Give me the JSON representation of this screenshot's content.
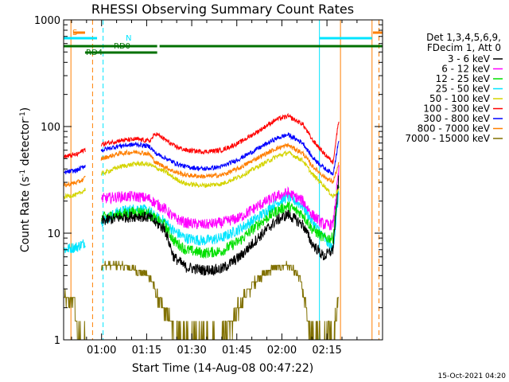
{
  "chart_data": {
    "type": "line",
    "title": "RHESSI Observing Summary Count Rates",
    "xlabel": "Start Time (14-Aug-08 00:47:22)",
    "ylabel": "Count Rate (s⁻¹ detector⁻¹)",
    "ylabel_parts": [
      "Count Rate (s",
      "-1",
      " detector",
      "-1",
      ")"
    ],
    "xlim_minutes": [
      47.37,
      153.5
    ],
    "ylim": [
      1,
      1000
    ],
    "yscale": "log",
    "x_ticks": [
      {
        "min": 60,
        "label": "01:00"
      },
      {
        "min": 75,
        "label": "01:15"
      },
      {
        "min": 90,
        "label": "01:30"
      },
      {
        "min": 105,
        "label": "01:45"
      },
      {
        "min": 120,
        "label": "02:00"
      },
      {
        "min": 135,
        "label": "02:15"
      }
    ],
    "y_ticks": [
      {
        "value": 1,
        "label": "1"
      },
      {
        "value": 10,
        "label": "10"
      },
      {
        "value": 100,
        "label": "100"
      },
      {
        "value": 1000,
        "label": "1000"
      }
    ],
    "legend": {
      "position": "right",
      "header": [
        "Det 1,3,4,5,6,9,",
        "FDecim 1, Att 0"
      ]
    },
    "series": [
      {
        "name": "3 - 6 keV",
        "color": "#000000",
        "x": [
          60,
          66,
          72,
          76,
          78,
          81,
          84,
          88,
          94,
          100,
          106,
          112,
          118,
          122,
          127,
          130,
          134,
          137,
          139
        ],
        "y": [
          13,
          14,
          14.5,
          14,
          12.5,
          11,
          6,
          4.8,
          4.5,
          4.6,
          6,
          9,
          13,
          15,
          12,
          8,
          6,
          7,
          35
        ]
      },
      {
        "name": "6 - 12 keV",
        "color": "#ff00ff",
        "x": [
          60,
          66,
          72,
          76,
          78,
          81,
          84,
          88,
          94,
          100,
          106,
          112,
          118,
          122,
          127,
          130,
          134,
          137,
          139
        ],
        "y": [
          21,
          22,
          22,
          21,
          19,
          17,
          14,
          12.5,
          12,
          12.5,
          14,
          18,
          22,
          24,
          20,
          15,
          12,
          12,
          40
        ]
      },
      {
        "name": "12 - 25 keV",
        "color": "#00e000",
        "x": [
          60,
          66,
          72,
          76,
          78,
          81,
          84,
          88,
          94,
          100,
          106,
          112,
          118,
          122,
          127,
          130,
          134,
          137,
          139
        ],
        "y": [
          14,
          15,
          16,
          15,
          13.5,
          12,
          8.5,
          7,
          6.5,
          6.8,
          8.5,
          12,
          16,
          18,
          15,
          11,
          9,
          9,
          30
        ]
      },
      {
        "name": "25 - 50 keV",
        "color": "#00e5ff",
        "x": [
          47.5,
          52,
          54,
          60,
          66,
          72,
          76,
          78,
          81,
          84,
          88,
          94,
          100,
          106,
          112,
          118,
          122,
          127,
          130,
          134,
          137,
          139
        ],
        "y": [
          7,
          7.5,
          8,
          13,
          16,
          17,
          16,
          14,
          13,
          10.5,
          9,
          8.5,
          9,
          11,
          14,
          19,
          22,
          18,
          13,
          9,
          7,
          25
        ]
      },
      {
        "name": "50 - 100 keV",
        "color": "#d4d400",
        "x": [
          47.5,
          52,
          54,
          60,
          66,
          72,
          76,
          78,
          81,
          84,
          88,
          94,
          100,
          106,
          112,
          118,
          122,
          127,
          130,
          134,
          137,
          139
        ],
        "y": [
          22,
          23,
          25,
          36,
          42,
          45,
          44,
          41,
          38,
          33,
          29,
          28,
          29,
          34,
          42,
          52,
          57,
          48,
          36,
          28,
          22,
          26
        ]
      },
      {
        "name": "100 - 300 keV",
        "color": "#ff0000",
        "x": [
          47.5,
          52,
          54,
          60,
          66,
          72,
          76,
          78,
          81,
          84,
          88,
          94,
          100,
          106,
          112,
          118,
          122,
          127,
          130,
          134,
          137,
          139
        ],
        "y": [
          52,
          55,
          60,
          68,
          74,
          76,
          73,
          86,
          76,
          66,
          60,
          58,
          60,
          71,
          90,
          116,
          125,
          105,
          76,
          56,
          46,
          120
        ]
      },
      {
        "name": "300 - 800 keV",
        "color": "#0000ff",
        "x": [
          47.5,
          52,
          54,
          60,
          66,
          72,
          76,
          78,
          81,
          84,
          88,
          94,
          100,
          106,
          112,
          118,
          122,
          127,
          130,
          134,
          137,
          139
        ],
        "y": [
          37,
          39,
          42,
          60,
          66,
          68,
          65,
          56,
          51,
          46,
          42,
          40,
          42,
          50,
          62,
          77,
          84,
          70,
          52,
          41,
          36,
          75
        ]
      },
      {
        "name": "800 - 7000 keV",
        "color": "#ff7f00",
        "x": [
          47.5,
          52,
          54,
          60,
          66,
          72,
          76,
          78,
          81,
          84,
          88,
          94,
          100,
          106,
          112,
          118,
          122,
          127,
          130,
          134,
          137,
          139
        ],
        "y": [
          28,
          30,
          32,
          50,
          56,
          58,
          55,
          46,
          42,
          38,
          35,
          34,
          35,
          41,
          51,
          62,
          67,
          56,
          43,
          34,
          30,
          45
        ]
      },
      {
        "name": "7000 - 15000 keV",
        "color": "#807000",
        "x": [
          47.5,
          51,
          52,
          54,
          60,
          63,
          66,
          72,
          76,
          78,
          80,
          84,
          88,
          94,
          100,
          104,
          108,
          112,
          118,
          122,
          126,
          130,
          134,
          137,
          139
        ],
        "y": [
          2.4,
          2.4,
          1,
          1,
          5,
          5,
          5,
          4.5,
          4,
          2.8,
          2,
          1.3,
          1,
          1,
          1,
          1.6,
          2.7,
          3.8,
          4.8,
          5,
          3.8,
          1,
          1,
          1,
          3
        ]
      }
    ],
    "flags": [
      {
        "label": "S",
        "color": "#ff7f00"
      },
      {
        "label": "N",
        "color": "#00e5ff"
      },
      {
        "label": "RD0",
        "color": "#007000"
      },
      {
        "label": "RD4",
        "color": "#007000"
      }
    ],
    "flag_segments": [
      {
        "flag": "S",
        "x_start": 50.5,
        "x_end": 54.5
      },
      {
        "flag": "S",
        "x_start": 150.3,
        "x_end": 153.5
      },
      {
        "flag": "N",
        "x_start": 47.5,
        "x_end": 58.5
      },
      {
        "flag": "N",
        "x_start": 132.5,
        "x_end": 150.0
      },
      {
        "flag": "RD0",
        "x_start": 47.5,
        "x_end": 153.5
      },
      {
        "flag": "RD4",
        "x_start": 54.5,
        "x_end": 78.5
      }
    ],
    "vertical_markers": [
      {
        "x": 49.8,
        "color": "#ff7f00",
        "style": "solid"
      },
      {
        "x": 57.0,
        "color": "#ff7f00",
        "style": "dashed"
      },
      {
        "x": 60.5,
        "color": "#00e5ff",
        "style": "dashed"
      },
      {
        "x": 139.5,
        "color": "#ff7f00",
        "style": "solid"
      },
      {
        "x": 150.0,
        "color": "#ff7f00",
        "style": "solid"
      },
      {
        "x": 152.3,
        "color": "#ff7f00",
        "style": "dashed"
      },
      {
        "x": 132.5,
        "color": "#00e5ff",
        "style": "solid"
      }
    ],
    "footer": "15-Oct-2021 04:20"
  }
}
